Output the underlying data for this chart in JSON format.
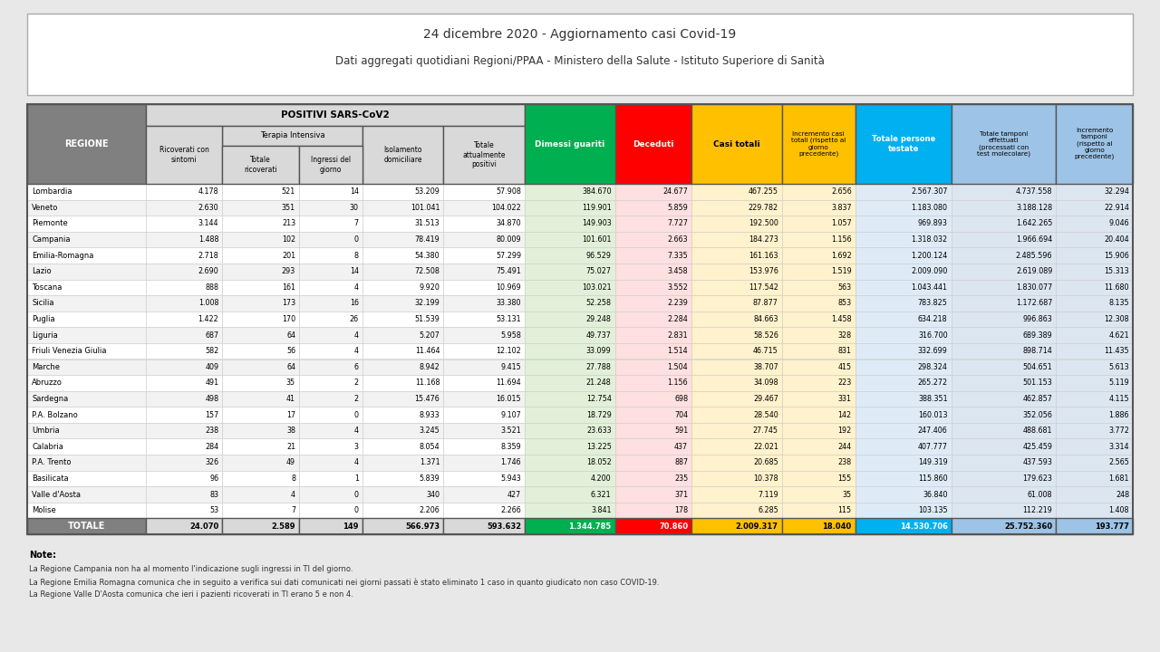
{
  "title1": "24 dicembre 2020 - Aggiornamento casi Covid-19",
  "title2": "Dati aggregati quotidiani Regioni/PPAA - Ministero della Salute - Istituto Superiore di Sanità",
  "note_title": "Note:",
  "notes": [
    "La Regione Campania non ha al momento l'indicazione sugli ingressi in TI del giorno.",
    "La Regione Emilia Romagna comunica che in seguito a verifica sui dati comunicati nei giorni passati è stato eliminato 1 caso in quanto giudicato non caso COVID-19.",
    "La Regione Valle D'Aosta comunica che ieri i pazienti ricoverati in TI erano 5 e non 4."
  ],
  "regions": [
    "Lombardia",
    "Veneto",
    "Piemonte",
    "Campania",
    "Emilia-Romagna",
    "Lazio",
    "Toscana",
    "Sicilia",
    "Puglia",
    "Liguria",
    "Friuli Venezia Giulia",
    "Marche",
    "Abruzzo",
    "Sardegna",
    "P.A. Bolzano",
    "Umbria",
    "Calabria",
    "P.A. Trento",
    "Basilicata",
    "Valle d'Aosta",
    "Molise"
  ],
  "data": [
    [
      4178,
      521,
      14,
      53209,
      57908,
      384670,
      24677,
      467255,
      2656,
      2567307,
      4737558,
      32294
    ],
    [
      2630,
      351,
      30,
      101041,
      104022,
      119901,
      5859,
      229782,
      3837,
      1183080,
      3188128,
      22914
    ],
    [
      3144,
      213,
      7,
      31513,
      34870,
      149903,
      7727,
      192500,
      1057,
      969893,
      1642265,
      9046
    ],
    [
      1488,
      102,
      0,
      78419,
      80009,
      101601,
      2663,
      184273,
      1156,
      1318032,
      1966694,
      20404
    ],
    [
      2718,
      201,
      8,
      54380,
      57299,
      96529,
      7335,
      161163,
      1692,
      1200124,
      2485596,
      15906
    ],
    [
      2690,
      293,
      14,
      72508,
      75491,
      75027,
      3458,
      153976,
      1519,
      2009090,
      2619089,
      15313
    ],
    [
      888,
      161,
      4,
      9920,
      10969,
      103021,
      3552,
      117542,
      563,
      1043441,
      1830077,
      11680
    ],
    [
      1008,
      173,
      16,
      32199,
      33380,
      52258,
      2239,
      87877,
      853,
      783825,
      1172687,
      8135
    ],
    [
      1422,
      170,
      26,
      51539,
      53131,
      29248,
      2284,
      84663,
      1458,
      634218,
      996863,
      12308
    ],
    [
      687,
      64,
      4,
      5207,
      5958,
      49737,
      2831,
      58526,
      328,
      316700,
      689389,
      4621
    ],
    [
      582,
      56,
      4,
      11464,
      12102,
      33099,
      1514,
      46715,
      831,
      332699,
      898714,
      11435
    ],
    [
      409,
      64,
      6,
      8942,
      9415,
      27788,
      1504,
      38707,
      415,
      298324,
      504651,
      5613
    ],
    [
      491,
      35,
      2,
      11168,
      11694,
      21248,
      1156,
      34098,
      223,
      265272,
      501153,
      5119
    ],
    [
      498,
      41,
      2,
      15476,
      16015,
      12754,
      698,
      29467,
      331,
      388351,
      462857,
      4115
    ],
    [
      157,
      17,
      0,
      8933,
      9107,
      18729,
      704,
      28540,
      142,
      160013,
      352056,
      1886
    ],
    [
      238,
      38,
      4,
      3245,
      3521,
      23633,
      591,
      27745,
      192,
      247406,
      488681,
      3772
    ],
    [
      284,
      21,
      3,
      8054,
      8359,
      13225,
      437,
      22021,
      244,
      407777,
      425459,
      3314
    ],
    [
      326,
      49,
      4,
      1371,
      1746,
      18052,
      887,
      20685,
      238,
      149319,
      437593,
      2565
    ],
    [
      96,
      8,
      1,
      5839,
      5943,
      4200,
      235,
      10378,
      155,
      115860,
      179623,
      1681
    ],
    [
      83,
      4,
      0,
      340,
      427,
      6321,
      371,
      7119,
      35,
      36840,
      61008,
      248
    ],
    [
      53,
      7,
      0,
      2206,
      2266,
      3841,
      178,
      6285,
      115,
      103135,
      112219,
      1408
    ]
  ],
  "totals": [
    24070,
    2589,
    149,
    566973,
    593632,
    1344785,
    70860,
    2009317,
    18040,
    14530706,
    25752360,
    193777
  ],
  "bg_color": "#e8e8e8",
  "title_box_color": "#ffffff",
  "gray_header": "#808080",
  "light_gray": "#d9d9d9",
  "green": "#00b050",
  "red": "#ff0000",
  "yellow": "#ffc000",
  "blue": "#00b0f0",
  "light_blue": "#9dc3e6",
  "row_even": "#ffffff",
  "row_odd": "#f2f2f2",
  "cell_green": "#e2f0d9",
  "cell_red": "#ffe0e0",
  "cell_yellow": "#fff2cc",
  "cell_blue": "#deebf7",
  "cell_lightblue": "#dce6f1"
}
